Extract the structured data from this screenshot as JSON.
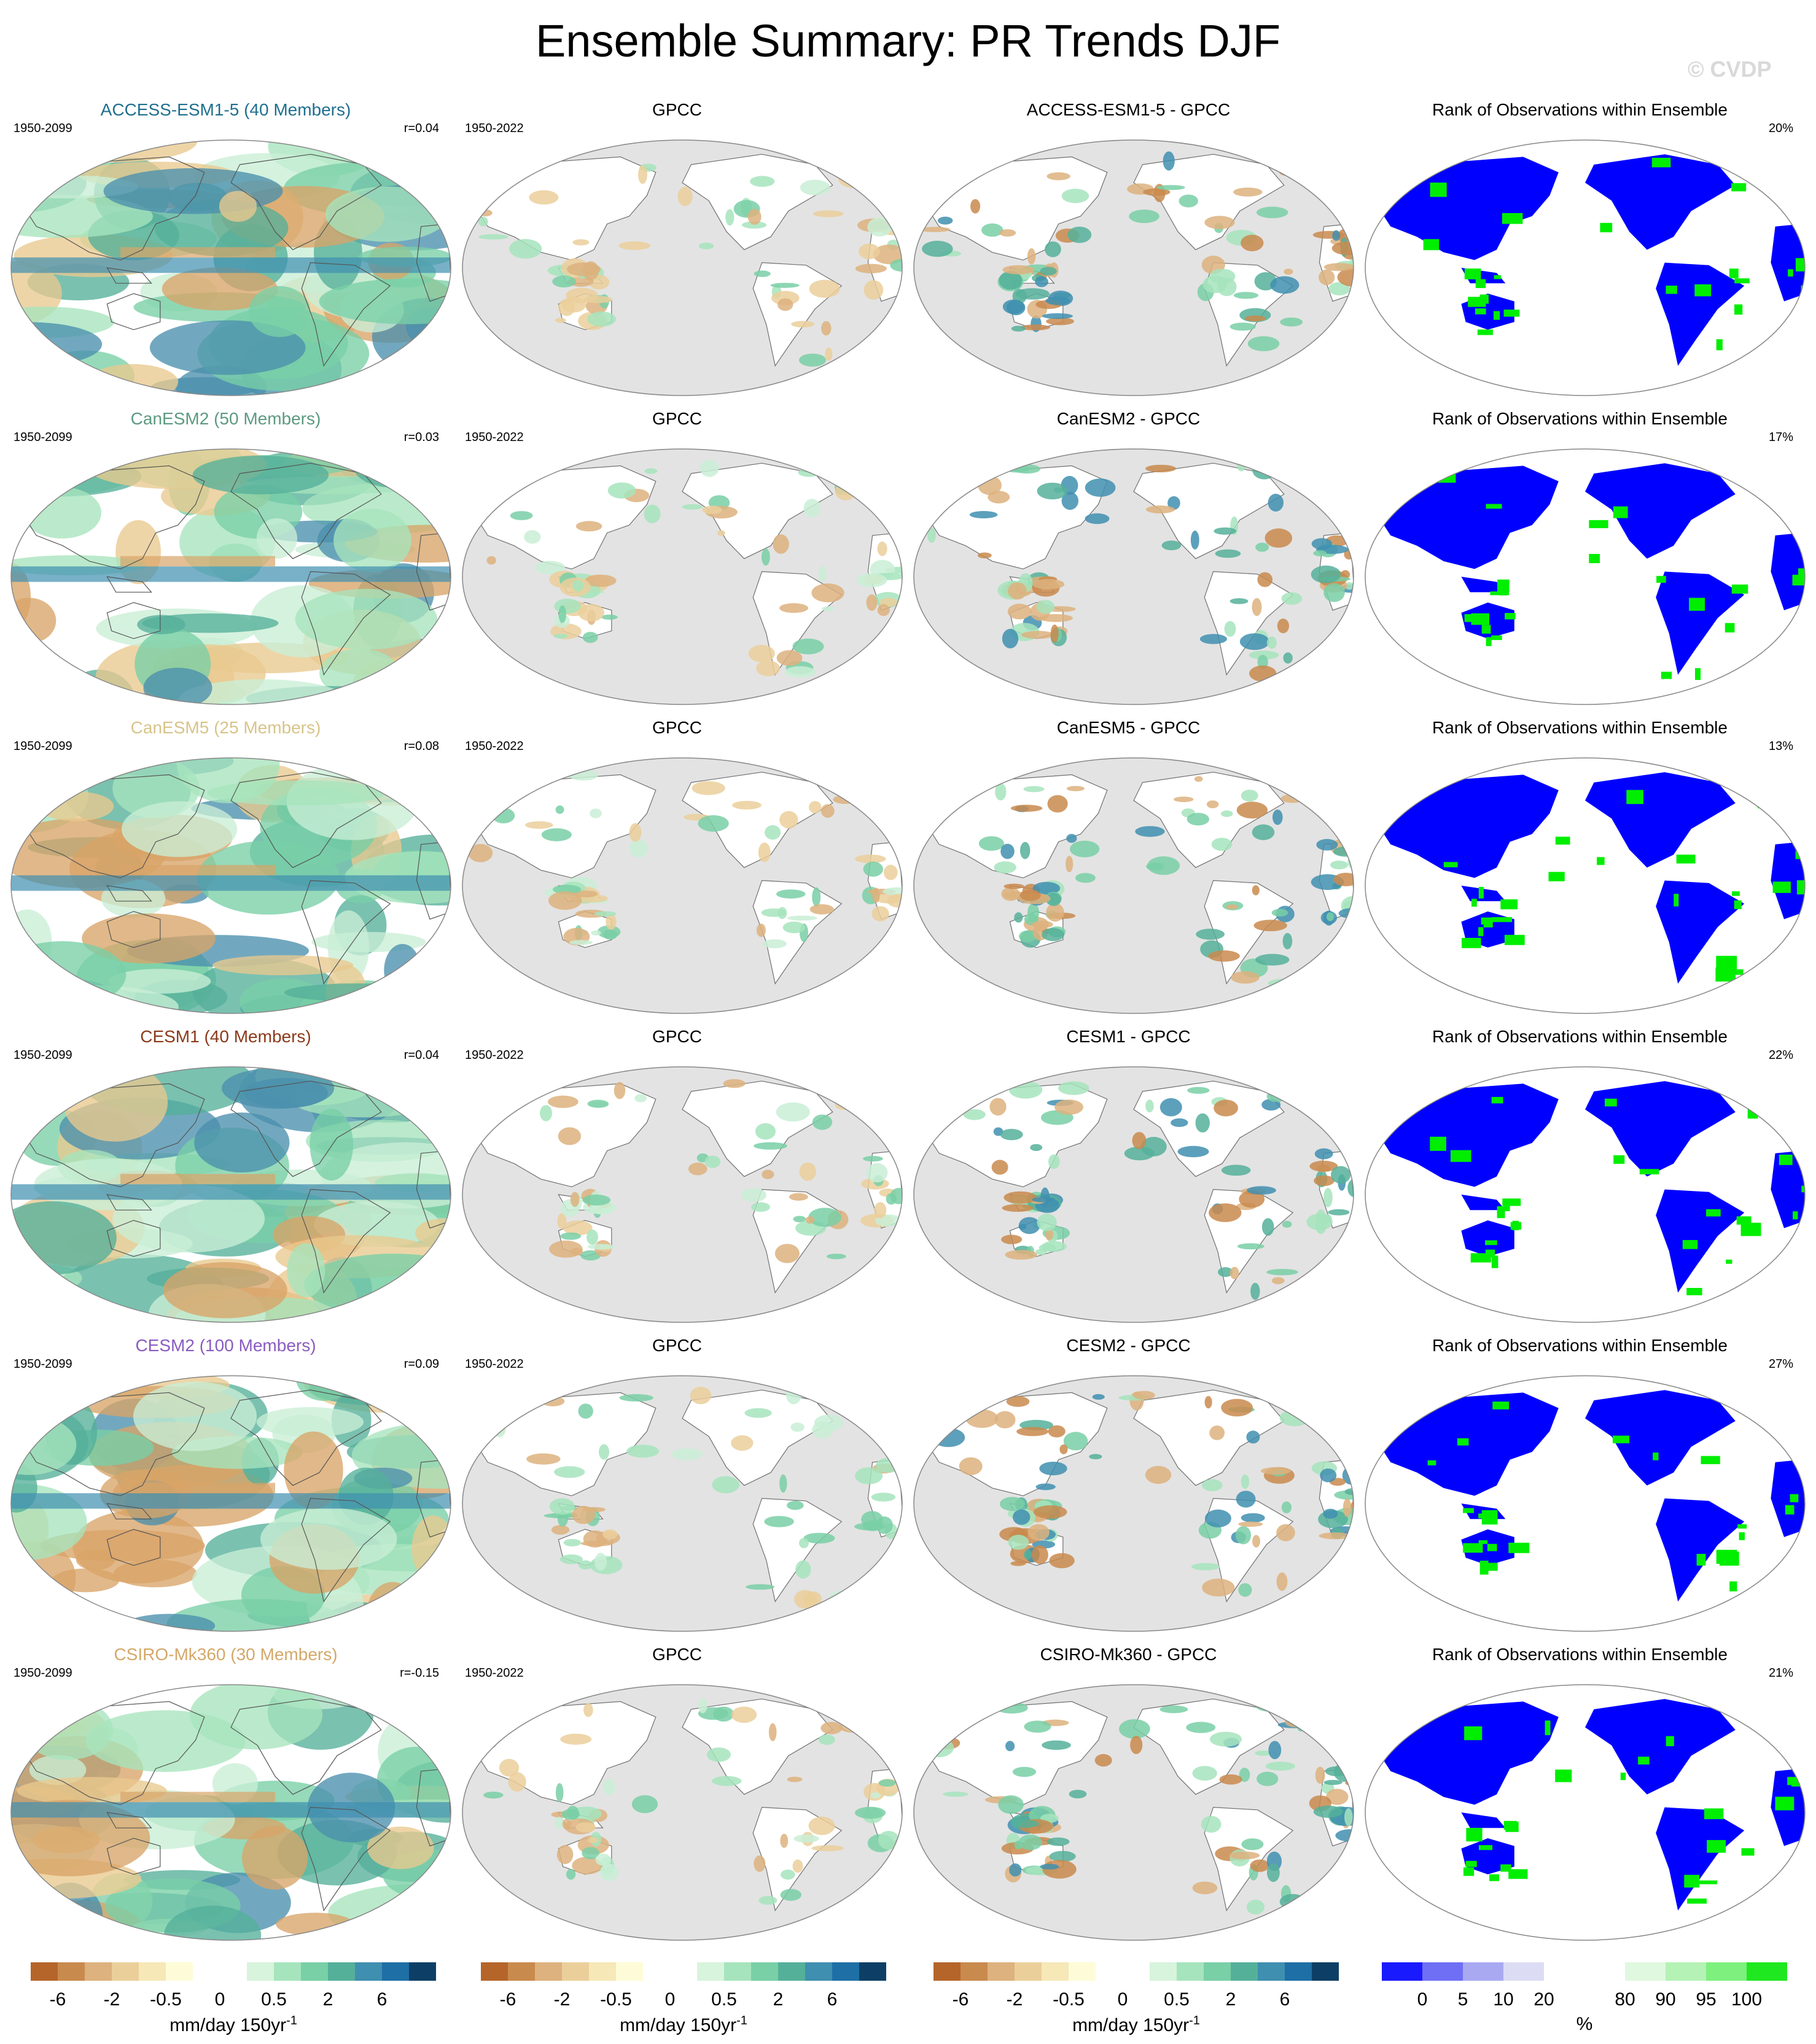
{
  "title": "Ensemble Summary: PR Trends DJF",
  "watermark": "© CVDP",
  "rows": [
    {
      "model": "ACCESS-ESM1-5 (40 Members)",
      "model_color": "#1f6f8f",
      "period": "1950-2099",
      "r": "r=0.04",
      "obs_title": "GPCC",
      "obs_period": "1950-2022",
      "diff_title": "ACCESS-ESM1-5 - GPCC",
      "rank_title": "Rank of Observations within Ensemble",
      "rank_pct": "20%"
    },
    {
      "model": "CanESM2 (50 Members)",
      "model_color": "#5d9a82",
      "period": "1950-2099",
      "r": "r=0.03",
      "obs_title": "GPCC",
      "obs_period": "1950-2022",
      "diff_title": "CanESM2 - GPCC",
      "rank_title": "Rank of Observations within Ensemble",
      "rank_pct": "17%"
    },
    {
      "model": "CanESM5 (25 Members)",
      "model_color": "#d8c48a",
      "period": "1950-2099",
      "r": "r=0.08",
      "obs_title": "GPCC",
      "obs_period": "1950-2022",
      "diff_title": "CanESM5 - GPCC",
      "rank_title": "Rank of Observations within Ensemble",
      "rank_pct": "13%"
    },
    {
      "model": "CESM1 (40 Members)",
      "model_color": "#8b3a1a",
      "period": "1950-2099",
      "r": "r=0.04",
      "obs_title": "GPCC",
      "obs_period": "1950-2022",
      "diff_title": "CESM1 - GPCC",
      "rank_title": "Rank of Observations within Ensemble",
      "rank_pct": "22%"
    },
    {
      "model": "CESM2 (100 Members)",
      "model_color": "#8a5cc0",
      "period": "1950-2099",
      "r": "r=0.09",
      "obs_title": "GPCC",
      "obs_period": "1950-2022",
      "diff_title": "CESM2 - GPCC",
      "rank_title": "Rank of Observations within Ensemble",
      "rank_pct": "27%"
    },
    {
      "model": "CSIRO-Mk360 (30 Members)",
      "model_color": "#d4a86a",
      "period": "1950-2099",
      "r": "r=-0.15",
      "obs_title": "GPCC",
      "obs_period": "1950-2022",
      "diff_title": "CSIRO-Mk360 - GPCC",
      "rank_title": "Rank of Observations within Ensemble",
      "rank_pct": "21%"
    }
  ],
  "colorbars": {
    "trend": {
      "colors": [
        "#b5652a",
        "#c98a4e",
        "#ddb27e",
        "#ebcf9b",
        "#f7e8b8",
        "#fefcd8",
        "#ffffff",
        "#ffffff",
        "#d8f4dc",
        "#a6e4bd",
        "#79cfa6",
        "#55b09a",
        "#3f8fb0",
        "#1e6fa6",
        "#0d3f66"
      ],
      "ticks": [
        "-6",
        "-2",
        "-0.5",
        "0",
        "0.5",
        "2",
        "6"
      ],
      "unit": "mm/day 150yr",
      "unit_sup": "-1"
    },
    "rank": {
      "colors": [
        "#1a1aff",
        "#6f6ff5",
        "#a9a9f2",
        "#dcdcf5",
        "#ffffff",
        "#ffffff",
        "#dff8df",
        "#b5f2b5",
        "#7ef07e",
        "#20e820"
      ],
      "ticks": [
        "0",
        "5",
        "10",
        "20",
        "80",
        "90",
        "95",
        "100"
      ],
      "unit": "%"
    }
  },
  "map_colors": {
    "ocean_gray": "#e3e3e3",
    "land_white": "#ffffff",
    "wet": "#5db9a0",
    "wet_strong": "#2a6f9c",
    "dry": "#e0b67c",
    "rank_low": "#0000ff",
    "rank_high": "#00ee00"
  }
}
